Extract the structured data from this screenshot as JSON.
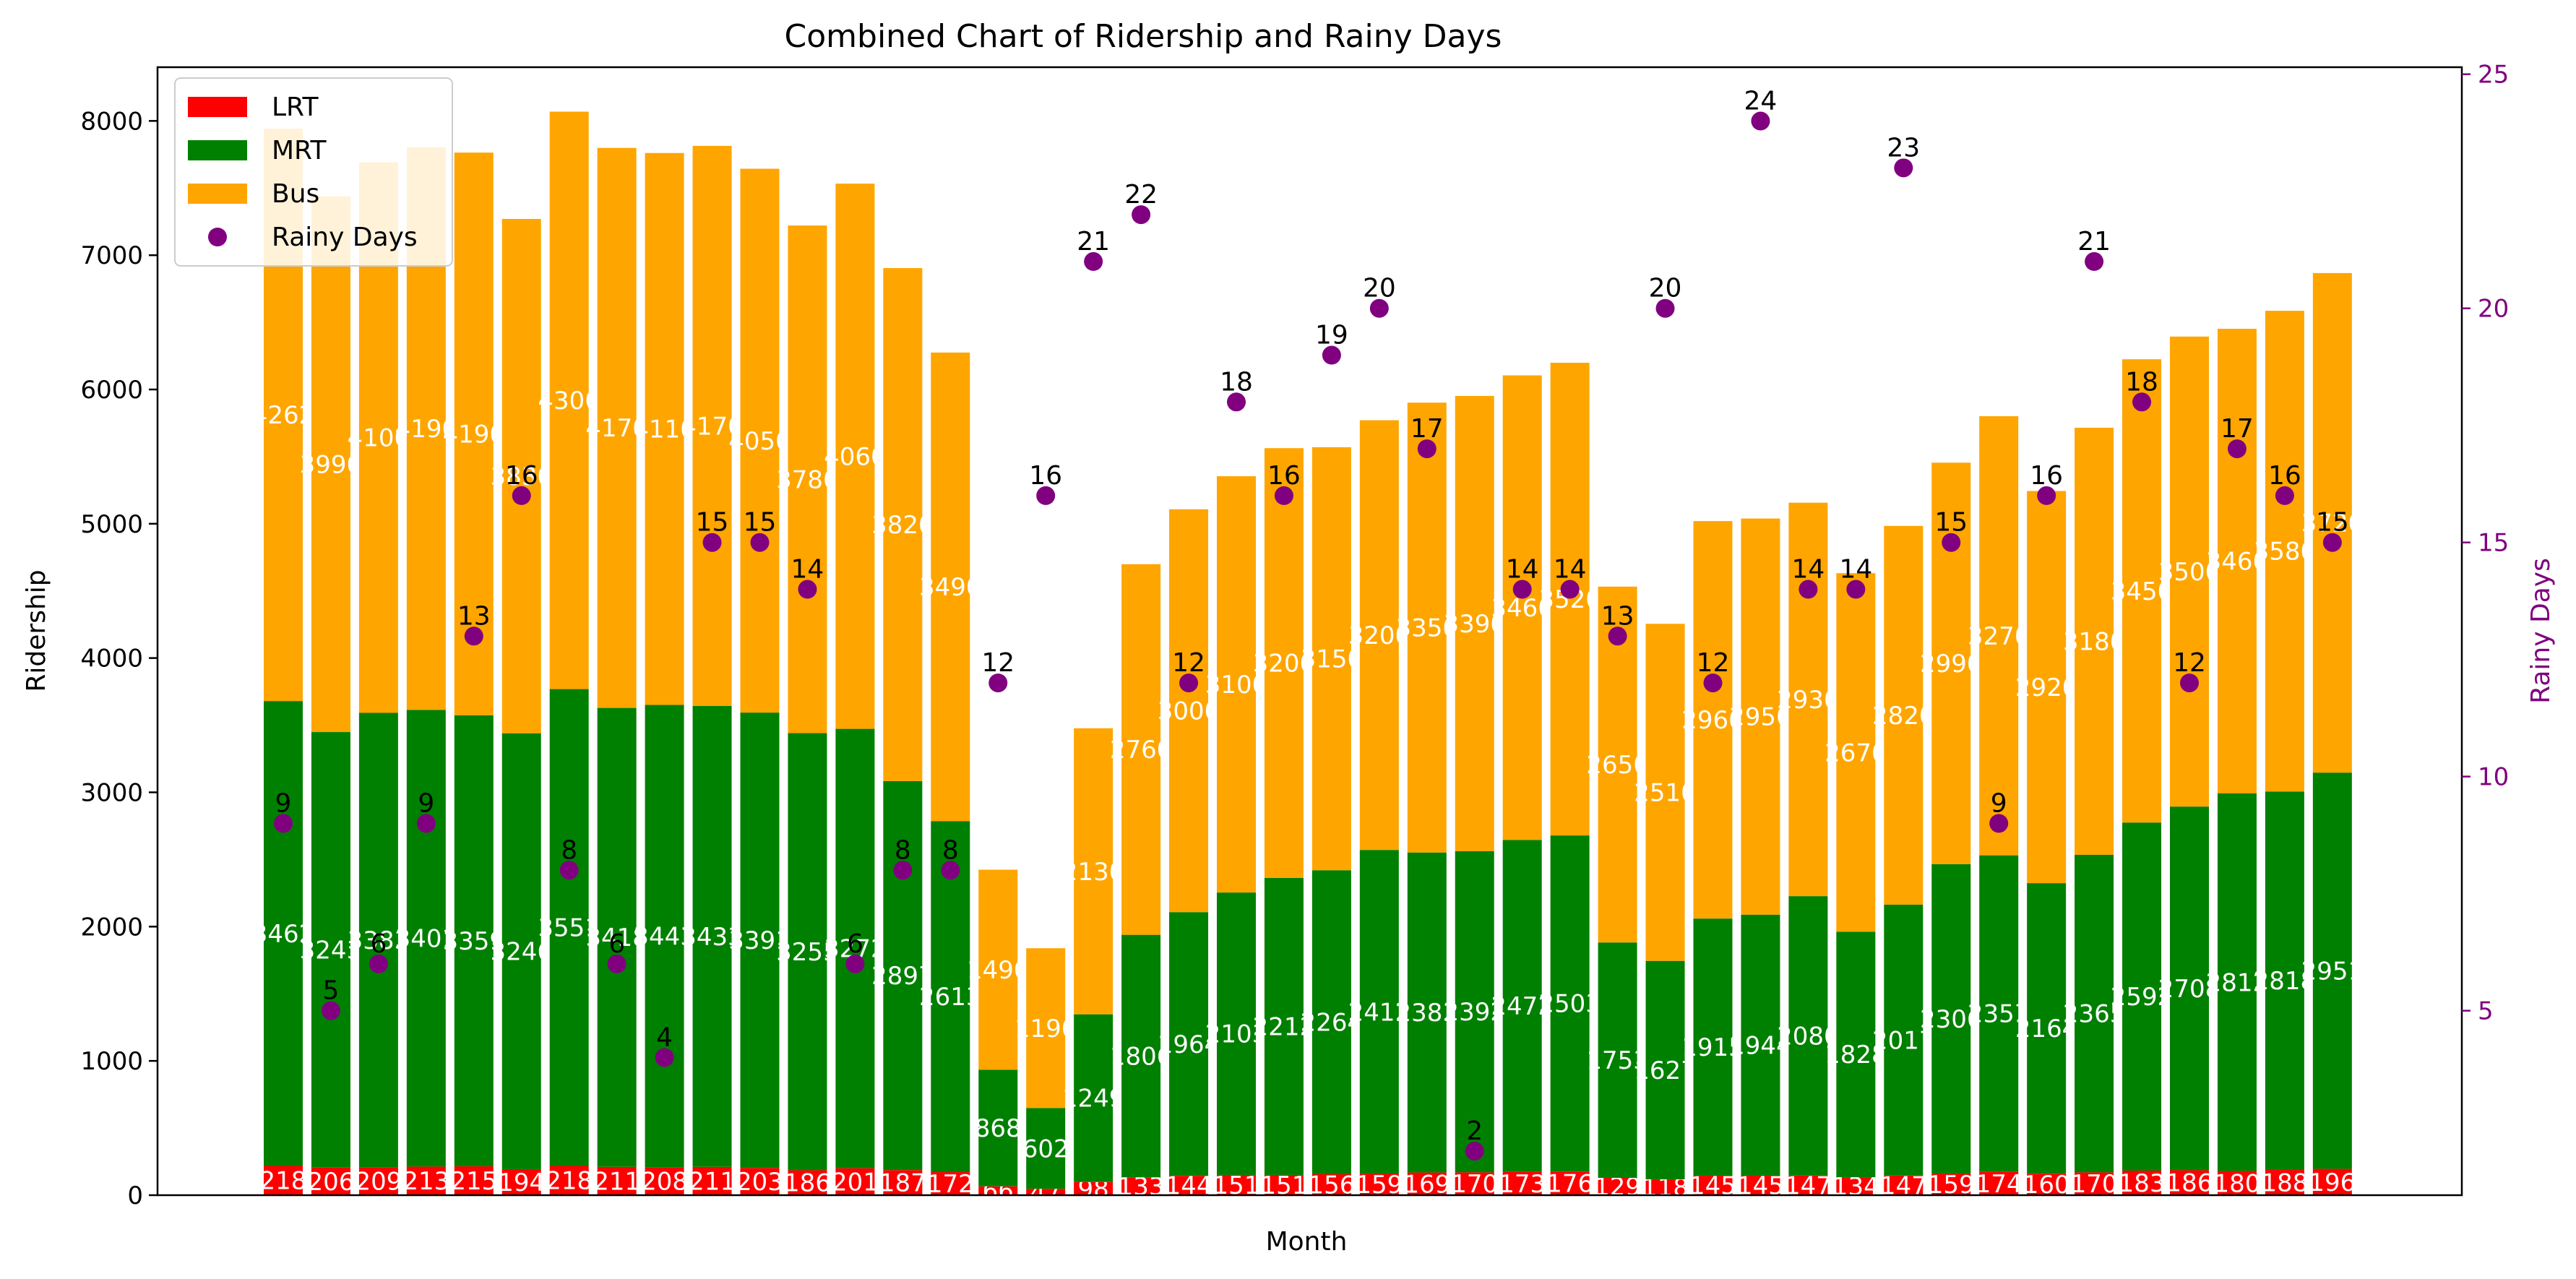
{
  "chart_data": {
    "type": "bar",
    "stacked": true,
    "title": "Combined Chart of Ridership and Rainy Days",
    "xlabel": "Month",
    "ylabel": "Ridership",
    "y2label": "Rainy Days",
    "ylim": [
      0,
      8400
    ],
    "yticks": [
      0,
      1000,
      2000,
      3000,
      4000,
      5000,
      6000,
      7000,
      8000
    ],
    "y2lim": [
      1.06,
      25.15
    ],
    "y2ticks": [
      5,
      10,
      15,
      20,
      25
    ],
    "legend": "upper-left",
    "grid": false,
    "series": [
      {
        "name": "LRT",
        "color": "#ff0000",
        "label_color": "#ffffff",
        "values": [
          218,
          206,
          209,
          213,
          215,
          194,
          218,
          211,
          208,
          211,
          203,
          186,
          201,
          187,
          172,
          66,
          47,
          98,
          133,
          144,
          151,
          151,
          156,
          159,
          169,
          170,
          173,
          176,
          129,
          118,
          145,
          145,
          147,
          134,
          147,
          159,
          174,
          160,
          170,
          183,
          186,
          180,
          188,
          196
        ]
      },
      {
        "name": "MRT",
        "color": "#008000",
        "label_color": "#ffffff",
        "values": [
          3462,
          3243,
          3383,
          3401,
          3359,
          3246,
          3551,
          3418,
          3443,
          3433,
          3391,
          3255,
          3272,
          2897,
          2613,
          868,
          602,
          1249,
          1806,
          1964,
          2103,
          2212,
          2264,
          2412,
          2383,
          2392,
          2472,
          2503,
          1753,
          1627,
          1915,
          1944,
          2080,
          1828,
          2017,
          2306,
          2357,
          2164,
          2365,
          2592,
          2708,
          2812,
          2818,
          2951
        ]
      },
      {
        "name": "Bus",
        "color": "#ffa500",
        "label_color": "#ffffff",
        "values": [
          4262,
          3990,
          4100,
          4190,
          4190,
          3830,
          4300,
          4170,
          4110,
          4170,
          4050,
          3780,
          4060,
          3820,
          3490,
          1490,
          1190,
          2130,
          2760,
          3000,
          3100,
          3200,
          3150,
          3200,
          3350,
          3390,
          3460,
          3520,
          2650,
          2510,
          2960,
          2950,
          2930,
          2670,
          2820,
          2990,
          3270,
          2920,
          3180,
          3450,
          3500,
          3460,
          3580,
          3720
        ]
      }
    ],
    "rainy_days": {
      "name": "Rainy Days",
      "color": "#800080",
      "values": [
        9,
        5,
        6,
        9,
        13,
        16,
        8,
        6,
        4,
        15,
        15,
        14,
        6,
        8,
        8,
        12,
        16,
        21,
        22,
        12,
        18,
        16,
        19,
        20,
        17,
        2,
        14,
        14,
        13,
        20,
        12,
        24,
        14,
        14,
        23,
        15,
        9,
        16,
        21,
        18,
        12,
        17,
        16,
        15
      ]
    }
  }
}
